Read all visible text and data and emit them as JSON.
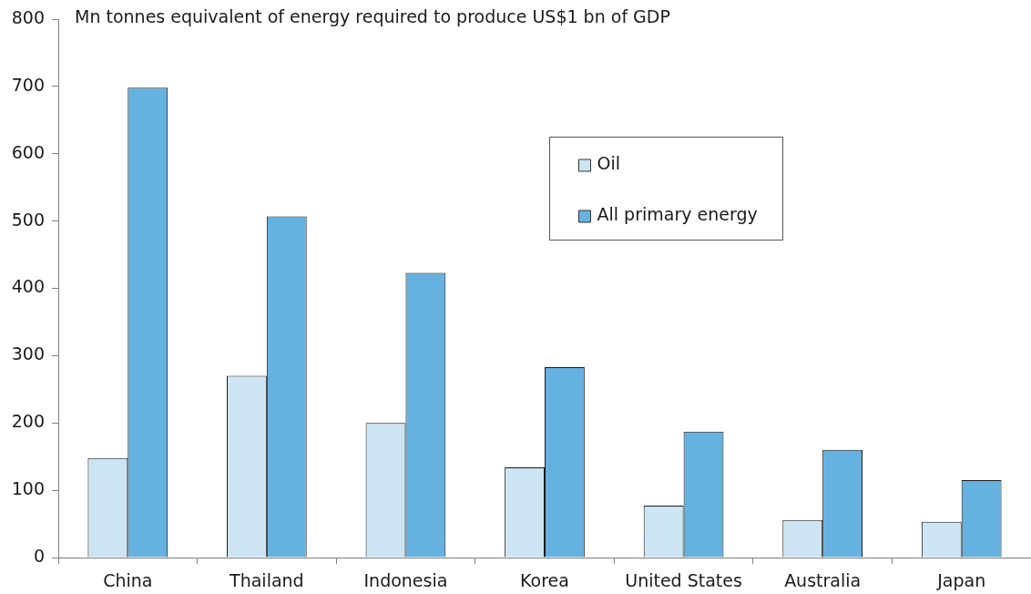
{
  "chart_data": {
    "type": "bar",
    "ylabel": "Mn tonnes equivalent of energy required to produce US$1 bn of GDP",
    "categories": [
      "China",
      "Thailand",
      "Indonesia",
      "Korea",
      "United States",
      "Australia",
      "Japan"
    ],
    "series": [
      {
        "name": "Oil",
        "color": "#cde4f3",
        "values": [
          148,
          270,
          200,
          134,
          77,
          56,
          53
        ]
      },
      {
        "name": "All primary energy",
        "color": "#65b1df",
        "values": [
          698,
          507,
          423,
          283,
          187,
          160,
          115
        ]
      }
    ],
    "ylim": [
      0,
      800
    ],
    "yticks": [
      0,
      100,
      200,
      300,
      400,
      500,
      600,
      700,
      800
    ],
    "legend": "top right"
  }
}
